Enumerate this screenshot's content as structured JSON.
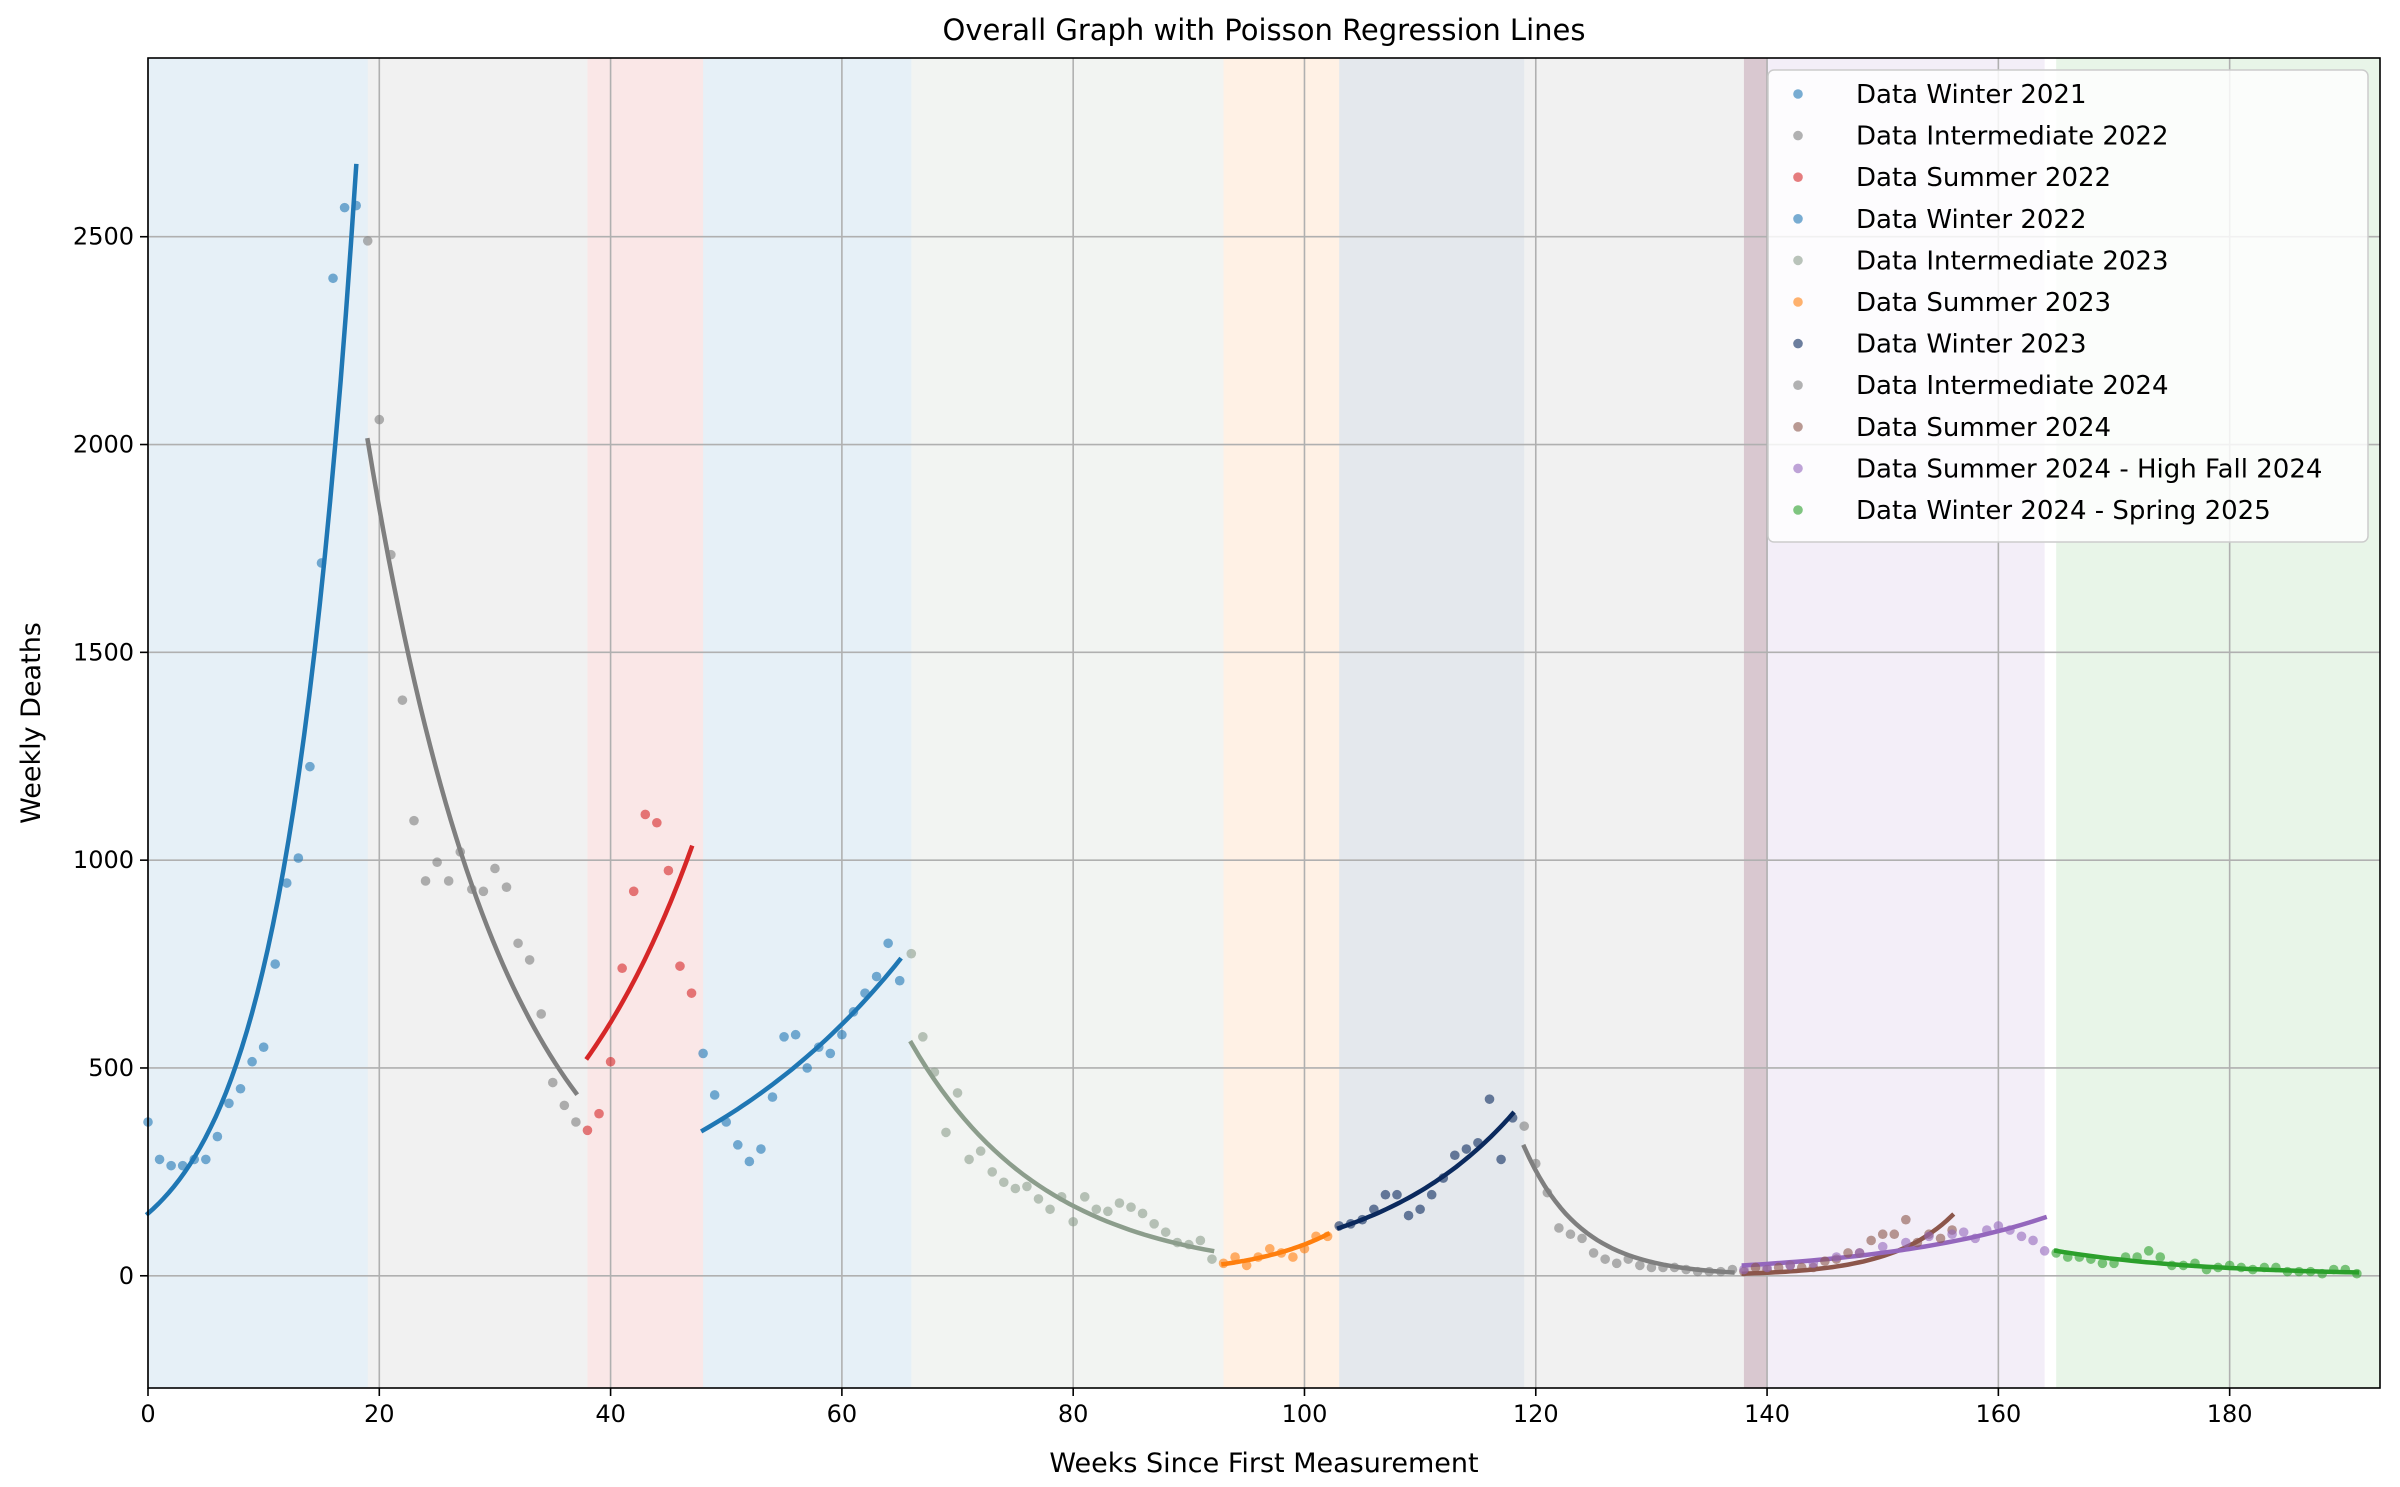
{
  "chart_data": {
    "type": "scatter",
    "title": "Overall Graph with Poisson Regression Lines",
    "xlabel": "Weeks Since First Measurement",
    "ylabel": "Weekly Deaths",
    "xlim": [
      0,
      193
    ],
    "ylim": [
      -270,
      2930
    ],
    "x_ticks": [
      0,
      20,
      40,
      60,
      80,
      100,
      120,
      140,
      160,
      180
    ],
    "y_ticks": [
      0,
      500,
      1000,
      1500,
      2000,
      2500
    ],
    "grid": true,
    "legend_position": "top-right",
    "bands": [
      {
        "start": 0,
        "end": 19,
        "color": "#1f77b4"
      },
      {
        "start": 19,
        "end": 38,
        "color": "#7f7f7f"
      },
      {
        "start": 38,
        "end": 48,
        "color": "#d62728"
      },
      {
        "start": 48,
        "end": 66,
        "color": "#1f77b4"
      },
      {
        "start": 66,
        "end": 93,
        "color": "#8c9d8c"
      },
      {
        "start": 93,
        "end": 103,
        "color": "#ff7f0e"
      },
      {
        "start": 103,
        "end": 119,
        "color": "#0b2a5e"
      },
      {
        "start": 119,
        "end": 138,
        "color": "#7f7f7f"
      },
      {
        "start": 138,
        "end": 140,
        "color": "#8c564b"
      },
      {
        "start": 138,
        "end": 164,
        "color": "#9467bd"
      },
      {
        "start": 165,
        "end": 193,
        "color": "#2ca02c"
      }
    ],
    "series": [
      {
        "name": "Data Winter 2021",
        "color": "#1f77b4",
        "points": [
          [
            0,
            370
          ],
          [
            1,
            280
          ],
          [
            2,
            265
          ],
          [
            3,
            265
          ],
          [
            4,
            280
          ],
          [
            5,
            280
          ],
          [
            6,
            335
          ],
          [
            7,
            415
          ],
          [
            8,
            450
          ],
          [
            9,
            515
          ],
          [
            10,
            550
          ],
          [
            11,
            750
          ],
          [
            12,
            945
          ],
          [
            13,
            1005
          ],
          [
            14,
            1225
          ],
          [
            15,
            1715
          ],
          [
            16,
            2400
          ],
          [
            17,
            2570
          ],
          [
            18,
            2575
          ]
        ],
        "fit": {
          "x0": 0,
          "x1": 18,
          "y0": 150,
          "y1": 2670
        }
      },
      {
        "name": "Data Intermediate 2022",
        "color": "#7f7f7f",
        "points": [
          [
            19,
            2490
          ],
          [
            20,
            2060
          ],
          [
            21,
            1735
          ],
          [
            22,
            1385
          ],
          [
            23,
            1095
          ],
          [
            24,
            950
          ],
          [
            25,
            995
          ],
          [
            26,
            950
          ],
          [
            27,
            1020
          ],
          [
            28,
            930
          ],
          [
            29,
            925
          ],
          [
            30,
            980
          ],
          [
            31,
            935
          ],
          [
            32,
            800
          ],
          [
            33,
            760
          ],
          [
            34,
            630
          ],
          [
            35,
            465
          ],
          [
            36,
            410
          ],
          [
            37,
            370
          ]
        ],
        "fit": {
          "x0": 19,
          "x1": 37,
          "y0": 2010,
          "y1": 440
        }
      },
      {
        "name": "Data Summer 2022",
        "color": "#d62728",
        "points": [
          [
            38,
            350
          ],
          [
            39,
            390
          ],
          [
            40,
            515
          ],
          [
            41,
            740
          ],
          [
            42,
            925
          ],
          [
            43,
            1110
          ],
          [
            44,
            1090
          ],
          [
            45,
            975
          ],
          [
            46,
            745
          ],
          [
            47,
            680
          ]
        ],
        "fit": {
          "x0": 38,
          "x1": 47,
          "y0": 525,
          "y1": 1030
        }
      },
      {
        "name": "Data Winter 2022",
        "color": "#1f77b4",
        "points": [
          [
            48,
            535
          ],
          [
            49,
            435
          ],
          [
            50,
            370
          ],
          [
            51,
            315
          ],
          [
            52,
            275
          ],
          [
            53,
            305
          ],
          [
            54,
            430
          ],
          [
            55,
            575
          ],
          [
            56,
            580
          ],
          [
            57,
            500
          ],
          [
            58,
            550
          ],
          [
            59,
            535
          ],
          [
            60,
            580
          ],
          [
            61,
            635
          ],
          [
            62,
            680
          ],
          [
            63,
            720
          ],
          [
            64,
            800
          ],
          [
            65,
            710
          ]
        ],
        "fit": {
          "x0": 48,
          "x1": 65,
          "y0": 350,
          "y1": 760
        }
      },
      {
        "name": "Data Intermediate 2023",
        "color": "#8c9d8c",
        "points": [
          [
            66,
            775
          ],
          [
            67,
            575
          ],
          [
            68,
            490
          ],
          [
            69,
            345
          ],
          [
            70,
            440
          ],
          [
            71,
            280
          ],
          [
            72,
            300
          ],
          [
            73,
            250
          ],
          [
            74,
            225
          ],
          [
            75,
            210
          ],
          [
            76,
            215
          ],
          [
            77,
            185
          ],
          [
            78,
            160
          ],
          [
            79,
            190
          ],
          [
            80,
            130
          ],
          [
            81,
            190
          ],
          [
            82,
            160
          ],
          [
            83,
            155
          ],
          [
            84,
            175
          ],
          [
            85,
            165
          ],
          [
            86,
            150
          ],
          [
            87,
            125
          ],
          [
            88,
            105
          ],
          [
            89,
            80
          ],
          [
            90,
            75
          ],
          [
            91,
            85
          ],
          [
            92,
            40
          ]
        ],
        "fit": {
          "x0": 66,
          "x1": 92,
          "y0": 560,
          "y1": 60
        }
      },
      {
        "name": "Data Summer 2023",
        "color": "#ff7f0e",
        "points": [
          [
            93,
            30
          ],
          [
            94,
            45
          ],
          [
            95,
            25
          ],
          [
            96,
            45
          ],
          [
            97,
            65
          ],
          [
            98,
            55
          ],
          [
            99,
            45
          ],
          [
            100,
            65
          ],
          [
            101,
            95
          ],
          [
            102,
            95
          ]
        ],
        "fit": {
          "x0": 93,
          "x1": 102,
          "y0": 28,
          "y1": 100
        }
      },
      {
        "name": "Data Winter 2023",
        "color": "#0b2a5e",
        "points": [
          [
            103,
            120
          ],
          [
            104,
            125
          ],
          [
            105,
            135
          ],
          [
            106,
            160
          ],
          [
            107,
            195
          ],
          [
            108,
            195
          ],
          [
            109,
            145
          ],
          [
            110,
            160
          ],
          [
            111,
            195
          ],
          [
            112,
            235
          ],
          [
            113,
            290
          ],
          [
            114,
            305
          ],
          [
            115,
            320
          ],
          [
            116,
            425
          ],
          [
            117,
            280
          ],
          [
            118,
            380
          ]
        ],
        "fit": {
          "x0": 103,
          "x1": 118,
          "y0": 115,
          "y1": 390
        }
      },
      {
        "name": "Data Intermediate 2024",
        "color": "#7f7f7f",
        "points": [
          [
            119,
            360
          ],
          [
            120,
            270
          ],
          [
            121,
            200
          ],
          [
            122,
            115
          ],
          [
            123,
            100
          ],
          [
            124,
            90
          ],
          [
            125,
            55
          ],
          [
            126,
            40
          ],
          [
            127,
            30
          ],
          [
            128,
            40
          ],
          [
            129,
            25
          ],
          [
            130,
            20
          ],
          [
            131,
            20
          ],
          [
            132,
            20
          ],
          [
            133,
            15
          ],
          [
            134,
            10
          ],
          [
            135,
            10
          ],
          [
            136,
            10
          ],
          [
            137,
            15
          ]
        ],
        "fit": {
          "x0": 119,
          "x1": 137,
          "y0": 310,
          "y1": 8
        }
      },
      {
        "name": "Data Summer 2024",
        "color": "#8c564b",
        "points": [
          [
            138,
            10
          ],
          [
            139,
            20
          ],
          [
            140,
            15
          ],
          [
            141,
            20
          ],
          [
            142,
            25
          ],
          [
            143,
            20
          ],
          [
            144,
            20
          ],
          [
            145,
            35
          ],
          [
            146,
            40
          ],
          [
            147,
            55
          ],
          [
            148,
            55
          ],
          [
            149,
            85
          ],
          [
            150,
            100
          ],
          [
            151,
            100
          ],
          [
            152,
            135
          ],
          [
            153,
            80
          ],
          [
            154,
            100
          ],
          [
            155,
            90
          ],
          [
            156,
            110
          ]
        ],
        "fit": {
          "x0": 138,
          "x1": 156,
          "y0": 5,
          "y1": 145
        }
      },
      {
        "name": "Data Summer 2024 - High Fall 2024",
        "color": "#9467bd",
        "points": [
          [
            138,
            15
          ],
          [
            140,
            20
          ],
          [
            142,
            25
          ],
          [
            144,
            30
          ],
          [
            146,
            45
          ],
          [
            148,
            55
          ],
          [
            150,
            70
          ],
          [
            152,
            80
          ],
          [
            154,
            95
          ],
          [
            156,
            100
          ],
          [
            157,
            105
          ],
          [
            158,
            90
          ],
          [
            159,
            110
          ],
          [
            160,
            120
          ],
          [
            161,
            110
          ],
          [
            162,
            95
          ],
          [
            163,
            85
          ],
          [
            164,
            60
          ]
        ],
        "fit": {
          "x0": 138,
          "x1": 164,
          "y0": 25,
          "y1": 140
        }
      },
      {
        "name": "Data Winter 2024 - Spring 2025",
        "color": "#2ca02c",
        "points": [
          [
            165,
            55
          ],
          [
            166,
            45
          ],
          [
            167,
            45
          ],
          [
            168,
            40
          ],
          [
            169,
            30
          ],
          [
            170,
            30
          ],
          [
            171,
            45
          ],
          [
            172,
            45
          ],
          [
            173,
            60
          ],
          [
            174,
            45
          ],
          [
            175,
            25
          ],
          [
            176,
            25
          ],
          [
            177,
            30
          ],
          [
            178,
            15
          ],
          [
            179,
            20
          ],
          [
            180,
            25
          ],
          [
            181,
            20
          ],
          [
            182,
            15
          ],
          [
            183,
            20
          ],
          [
            184,
            20
          ],
          [
            185,
            10
          ],
          [
            186,
            10
          ],
          [
            187,
            10
          ],
          [
            188,
            5
          ],
          [
            189,
            15
          ],
          [
            190,
            15
          ],
          [
            191,
            5
          ]
        ],
        "fit": {
          "x0": 165,
          "x1": 191,
          "y0": 60,
          "y1": 8
        }
      }
    ]
  }
}
